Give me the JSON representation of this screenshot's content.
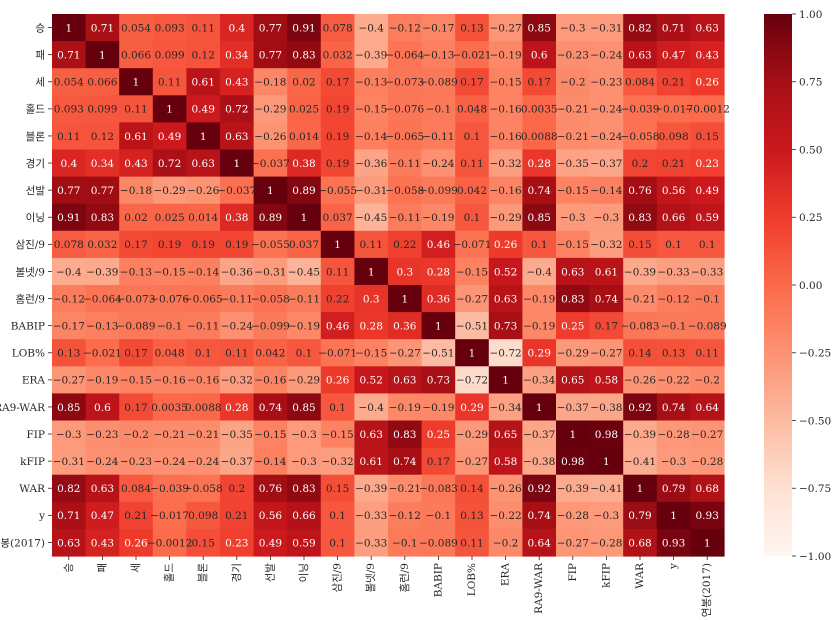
{
  "chart_data": {
    "type": "heatmap",
    "labels": [
      "승",
      "패",
      "세",
      "홀드",
      "블론",
      "경기",
      "선발",
      "이닝",
      "삼진/9",
      "볼넷/9",
      "홈런/9",
      "BABIP",
      "LOB%",
      "ERA",
      "RA9-WAR",
      "FIP",
      "kFIP",
      "WAR",
      "y",
      "연봉(2017)"
    ],
    "matrix": [
      [
        1,
        0.71,
        0.054,
        0.093,
        0.11,
        0.4,
        0.77,
        0.91,
        0.078,
        -0.4,
        -0.12,
        -0.17,
        0.13,
        -0.27,
        0.85,
        -0.3,
        -0.31,
        0.82,
        0.71,
        0.63
      ],
      [
        0.71,
        1,
        0.066,
        0.099,
        0.12,
        0.34,
        0.77,
        0.83,
        0.032,
        -0.39,
        -0.064,
        -0.13,
        -0.021,
        -0.19,
        0.6,
        -0.23,
        -0.24,
        0.63,
        0.47,
        0.43
      ],
      [
        0.054,
        0.066,
        1,
        0.11,
        0.61,
        0.43,
        -0.18,
        0.02,
        0.17,
        -0.13,
        -0.073,
        -0.089,
        0.17,
        -0.15,
        0.17,
        -0.2,
        -0.23,
        0.084,
        0.21,
        0.26
      ],
      [
        0.093,
        0.099,
        0.11,
        1,
        0.49,
        0.72,
        -0.29,
        0.025,
        0.19,
        -0.15,
        -0.076,
        -0.1,
        0.048,
        -0.16,
        0.0035,
        -0.21,
        -0.24,
        -0.039,
        -0.017,
        -0.0012
      ],
      [
        0.11,
        0.12,
        0.61,
        0.49,
        1,
        0.63,
        -0.26,
        0.014,
        0.19,
        -0.14,
        -0.065,
        -0.11,
        0.1,
        -0.16,
        0.0088,
        -0.21,
        -0.24,
        -0.058,
        0.098,
        0.15
      ],
      [
        0.4,
        0.34,
        0.43,
        0.72,
        0.63,
        1,
        -0.037,
        0.38,
        0.19,
        -0.36,
        -0.11,
        -0.24,
        0.11,
        -0.32,
        0.28,
        -0.35,
        -0.37,
        0.2,
        0.21,
        0.23
      ],
      [
        0.77,
        0.77,
        -0.18,
        -0.29,
        -0.26,
        -0.037,
        1,
        0.89,
        -0.055,
        -0.31,
        -0.058,
        -0.099,
        0.042,
        -0.16,
        0.74,
        -0.15,
        -0.14,
        0.76,
        0.56,
        0.49
      ],
      [
        0.91,
        0.83,
        0.02,
        0.025,
        0.014,
        0.38,
        0.89,
        1,
        0.037,
        -0.45,
        -0.11,
        -0.19,
        0.1,
        -0.29,
        0.85,
        -0.3,
        -0.3,
        0.83,
        0.66,
        0.59
      ],
      [
        0.078,
        0.032,
        0.17,
        0.19,
        0.19,
        0.19,
        -0.055,
        0.037,
        1,
        0.11,
        0.22,
        0.46,
        -0.071,
        0.26,
        0.1,
        -0.15,
        -0.32,
        0.15,
        0.1,
        0.1
      ],
      [
        -0.4,
        -0.39,
        -0.13,
        -0.15,
        -0.14,
        -0.36,
        -0.31,
        -0.45,
        0.11,
        1,
        0.3,
        0.28,
        -0.15,
        0.52,
        -0.4,
        0.63,
        0.61,
        -0.39,
        -0.33,
        -0.33
      ],
      [
        -0.12,
        -0.064,
        -0.073,
        -0.076,
        -0.065,
        -0.11,
        -0.058,
        -0.11,
        0.22,
        0.3,
        1,
        0.36,
        -0.27,
        0.63,
        -0.19,
        0.83,
        0.74,
        -0.21,
        -0.12,
        -0.1
      ],
      [
        -0.17,
        -0.13,
        -0.089,
        -0.1,
        -0.11,
        -0.24,
        -0.099,
        -0.19,
        0.46,
        0.28,
        0.36,
        1,
        -0.51,
        0.73,
        -0.19,
        0.25,
        0.17,
        -0.083,
        -0.1,
        -0.089
      ],
      [
        0.13,
        -0.021,
        0.17,
        0.048,
        0.1,
        0.11,
        0.042,
        0.1,
        -0.071,
        -0.15,
        -0.27,
        -0.51,
        1,
        -0.72,
        0.29,
        -0.29,
        -0.27,
        0.14,
        0.13,
        0.11
      ],
      [
        -0.27,
        -0.19,
        -0.15,
        -0.16,
        -0.16,
        -0.32,
        -0.16,
        -0.29,
        0.26,
        0.52,
        0.63,
        0.73,
        -0.72,
        1,
        -0.34,
        0.65,
        0.58,
        -0.26,
        -0.22,
        -0.2
      ],
      [
        0.85,
        0.6,
        0.17,
        0.0035,
        0.0088,
        0.28,
        0.74,
        0.85,
        0.1,
        -0.4,
        -0.19,
        -0.19,
        0.29,
        -0.34,
        1,
        -0.37,
        -0.38,
        0.92,
        0.74,
        0.64
      ],
      [
        -0.3,
        -0.23,
        -0.2,
        -0.21,
        -0.21,
        -0.35,
        -0.15,
        -0.3,
        -0.15,
        0.63,
        0.83,
        0.25,
        -0.29,
        0.65,
        -0.37,
        1,
        0.98,
        -0.39,
        -0.28,
        -0.27
      ],
      [
        -0.31,
        -0.24,
        -0.23,
        -0.24,
        -0.24,
        -0.37,
        -0.14,
        -0.3,
        -0.32,
        0.61,
        0.74,
        0.17,
        -0.27,
        0.58,
        -0.38,
        0.98,
        1,
        -0.41,
        -0.3,
        -0.28
      ],
      [
        0.82,
        0.63,
        0.084,
        -0.039,
        -0.058,
        0.2,
        0.76,
        0.83,
        0.15,
        -0.39,
        -0.21,
        -0.083,
        0.14,
        -0.26,
        0.92,
        -0.39,
        -0.41,
        1,
        0.79,
        0.68
      ],
      [
        0.71,
        0.47,
        0.21,
        -0.017,
        0.098,
        0.21,
        0.56,
        0.66,
        0.1,
        -0.33,
        -0.12,
        -0.1,
        0.13,
        -0.22,
        0.74,
        -0.28,
        -0.3,
        0.79,
        1,
        0.93
      ],
      [
        0.63,
        0.43,
        0.26,
        -0.0012,
        0.15,
        0.23,
        0.49,
        0.59,
        0.1,
        -0.33,
        -0.1,
        -0.089,
        0.11,
        -0.2,
        0.64,
        -0.27,
        -0.28,
        0.68,
        0.93,
        1
      ]
    ],
    "vmin": -1.0,
    "vmax": 1.0,
    "colormap": "Reds",
    "annotated": true,
    "colorbar": {
      "ticks": [
        1.0,
        0.75,
        0.5,
        0.25,
        0.0,
        -0.25,
        -0.5,
        -0.75,
        -1.0
      ],
      "tick_labels": [
        "1.00",
        "0.75",
        "0.50",
        "0.25",
        "0.00",
        "−0.25",
        "−0.50",
        "−0.75",
        "−1.00"
      ],
      "placement": "right"
    },
    "title": "",
    "xlabel": "",
    "ylabel": ""
  }
}
